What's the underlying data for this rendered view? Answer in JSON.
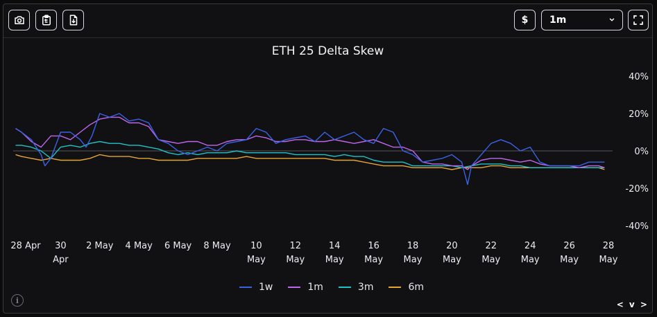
{
  "toolbar": {
    "buttons": [
      {
        "name": "camera-icon"
      },
      {
        "name": "clipboard-copy-icon"
      },
      {
        "name": "file-download-icon"
      }
    ],
    "currency_label": "$",
    "range_selected": "1m",
    "fullscreen_icon": "fullscreen-icon"
  },
  "footer": {
    "info_label": "i",
    "nav_label": "< v >"
  },
  "chart_data": {
    "type": "line",
    "title": "ETH 25 Delta Skew",
    "xlabel": "",
    "ylabel": "",
    "ylim": [
      -40,
      40
    ],
    "yticks": [
      "40%",
      "20%",
      "0%",
      "-20%",
      "-40%"
    ],
    "ytick_values": [
      40,
      20,
      0,
      -20,
      -40
    ],
    "xlim": [
      0,
      30
    ],
    "xticks": [
      {
        "x": 0,
        "label": [
          "28 Apr"
        ]
      },
      {
        "x": 2,
        "label": [
          "30",
          "Apr"
        ]
      },
      {
        "x": 4,
        "label": [
          "2 May"
        ]
      },
      {
        "x": 6,
        "label": [
          "4 May"
        ]
      },
      {
        "x": 8,
        "label": [
          "6 May"
        ]
      },
      {
        "x": 10,
        "label": [
          "8 May"
        ]
      },
      {
        "x": 12,
        "label": [
          "10",
          "May"
        ]
      },
      {
        "x": 14,
        "label": [
          "12",
          "May"
        ]
      },
      {
        "x": 16,
        "label": [
          "14",
          "May"
        ]
      },
      {
        "x": 18,
        "label": [
          "16",
          "May"
        ]
      },
      {
        "x": 20,
        "label": [
          "18",
          "May"
        ]
      },
      {
        "x": 22,
        "label": [
          "20",
          "May"
        ]
      },
      {
        "x": 24,
        "label": [
          "22",
          "May"
        ]
      },
      {
        "x": 26,
        "label": [
          "24",
          "May"
        ]
      },
      {
        "x": 28,
        "label": [
          "26",
          "May"
        ]
      },
      {
        "x": 30,
        "label": [
          "28",
          "May"
        ]
      }
    ],
    "zero_line": true,
    "legend_position": "bottom",
    "series": [
      {
        "name": "1w",
        "color": "#3a63e6",
        "x": [
          -0.3,
          0,
          0.5,
          1,
          1.2,
          1.5,
          2,
          2.5,
          3,
          3.3,
          3.6,
          4,
          4.5,
          5,
          5.5,
          6,
          6.5,
          7,
          7.5,
          8,
          8.5,
          9,
          9.5,
          10,
          10.5,
          11,
          11.5,
          12,
          12.5,
          13,
          13.5,
          14,
          14.5,
          15,
          15.5,
          16,
          16.5,
          17,
          17.5,
          18,
          18.5,
          19,
          19.5,
          20,
          20.5,
          21,
          21.5,
          22,
          22.5,
          22.8,
          23,
          23.5,
          24,
          24.5,
          25,
          25.5,
          26,
          26.5,
          27,
          27.5,
          28,
          28.5,
          29,
          29.5,
          29.8
        ],
        "y": [
          12,
          10,
          6,
          -2,
          -8,
          -4,
          10,
          10,
          6,
          2,
          8,
          20,
          18,
          20,
          16,
          17,
          15,
          6,
          4,
          0,
          -2,
          0,
          2,
          0,
          4,
          5,
          6,
          12,
          10,
          4,
          6,
          7,
          8,
          5,
          10,
          6,
          8,
          10,
          6,
          4,
          12,
          10,
          0,
          -2,
          -6,
          -5,
          -4,
          -2,
          -6,
          -18,
          -8,
          -2,
          4,
          6,
          4,
          0,
          2,
          -6,
          -8,
          -8,
          -8,
          -8,
          -6,
          -6,
          -6
        ]
      },
      {
        "name": "1m",
        "color": "#c366ee",
        "x": [
          -0.3,
          0,
          0.5,
          1,
          1.5,
          2,
          2.5,
          3,
          3.5,
          4,
          4.5,
          5,
          5.5,
          6,
          6.5,
          7,
          7.5,
          8,
          8.5,
          9,
          9.5,
          10,
          10.5,
          11,
          11.5,
          12,
          12.5,
          13,
          13.5,
          14,
          14.5,
          15,
          15.5,
          16,
          16.5,
          17,
          17.5,
          18,
          18.5,
          19,
          19.5,
          20,
          20.5,
          21,
          21.5,
          22,
          22.5,
          22.8,
          23,
          23.5,
          24,
          24.5,
          25,
          25.5,
          26,
          26.5,
          27,
          27.5,
          28,
          28.5,
          29,
          29.5,
          29.8
        ],
        "y": [
          12,
          10,
          5,
          2,
          8,
          8,
          6,
          10,
          14,
          17,
          18,
          18,
          15,
          15,
          13,
          6,
          5,
          4,
          5,
          5,
          3,
          3,
          5,
          6,
          6,
          8,
          7,
          5,
          5,
          6,
          6,
          5,
          5,
          6,
          5,
          4,
          5,
          6,
          4,
          2,
          2,
          0,
          -6,
          -7,
          -7,
          -8,
          -8,
          -10,
          -8,
          -5,
          -4,
          -4,
          -5,
          -6,
          -5,
          -7,
          -8,
          -8,
          -8,
          -9,
          -8,
          -8,
          -9
        ]
      },
      {
        "name": "3m",
        "color": "#1ec4c9",
        "x": [
          -0.3,
          0,
          0.5,
          1,
          1.5,
          2,
          2.5,
          3,
          3.5,
          4,
          4.5,
          5,
          5.5,
          6,
          6.5,
          7,
          7.5,
          8,
          8.5,
          9,
          9.5,
          10,
          10.5,
          11,
          11.5,
          12,
          12.5,
          13,
          13.5,
          14,
          14.5,
          15,
          15.5,
          16,
          16.5,
          17,
          17.5,
          18,
          18.5,
          19,
          19.5,
          20,
          20.5,
          21,
          21.5,
          22,
          22.5,
          23,
          23.5,
          24,
          24.5,
          25,
          25.5,
          26,
          26.5,
          27,
          27.5,
          28,
          28.5,
          29,
          29.5,
          29.8
        ],
        "y": [
          3,
          3,
          2,
          0,
          -4,
          2,
          3,
          2,
          4,
          5,
          4,
          4,
          3,
          3,
          2,
          1,
          -1,
          -2,
          -1,
          -2,
          -1,
          -1,
          -1,
          0,
          -1,
          -1,
          -1,
          -1,
          -1,
          -2,
          -2,
          -2,
          -2,
          -3,
          -2,
          -3,
          -3,
          -5,
          -6,
          -6,
          -6,
          -8,
          -8,
          -8,
          -8,
          -8,
          -9,
          -8,
          -7,
          -7,
          -7,
          -8,
          -8,
          -9,
          -9,
          -9,
          -9,
          -9,
          -9,
          -9,
          -9,
          -9
        ]
      },
      {
        "name": "6m",
        "color": "#e7a531",
        "x": [
          -0.3,
          0,
          0.5,
          1,
          1.5,
          2,
          2.5,
          3,
          3.5,
          4,
          4.5,
          5,
          5.5,
          6,
          6.5,
          7,
          7.5,
          8,
          8.5,
          9,
          9.5,
          10,
          10.5,
          11,
          11.5,
          12,
          12.5,
          13,
          13.5,
          14,
          14.5,
          15,
          15.5,
          16,
          16.5,
          17,
          17.5,
          18,
          18.5,
          19,
          19.5,
          20,
          20.5,
          21,
          21.5,
          22,
          22.5,
          23,
          23.5,
          24,
          24.5,
          25,
          25.5,
          26,
          26.5,
          27,
          27.5,
          28,
          28.5,
          29,
          29.5,
          29.8
        ],
        "y": [
          -2,
          -3,
          -4,
          -5,
          -4,
          -5,
          -5,
          -5,
          -4,
          -2,
          -3,
          -3,
          -3,
          -4,
          -4,
          -5,
          -5,
          -5,
          -5,
          -4,
          -4,
          -4,
          -4,
          -4,
          -3,
          -4,
          -4,
          -4,
          -4,
          -4,
          -4,
          -4,
          -4,
          -5,
          -5,
          -5,
          -6,
          -7,
          -8,
          -8,
          -8,
          -9,
          -9,
          -9,
          -9,
          -10,
          -9,
          -9,
          -9,
          -8,
          -8,
          -9,
          -9,
          -9,
          -9,
          -9,
          -9,
          -9,
          -9,
          -9,
          -9,
          -10
        ]
      }
    ]
  }
}
